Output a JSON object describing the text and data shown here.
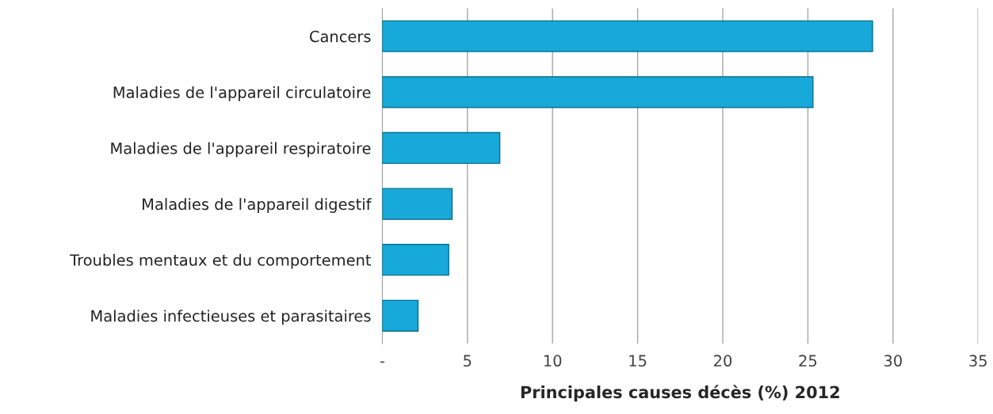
{
  "chart_data": {
    "type": "bar",
    "orientation": "horizontal",
    "xlabel": "Principales causes décès (%) 2012",
    "categories": [
      "Cancers",
      "Maladies de l'appareil circulatoire",
      "Maladies de l'appareil respiratoire",
      "Maladies de l'appareil digestif",
      "Troubles mentaux et du comportement",
      "Maladies infectieuses et parasitaires"
    ],
    "values": [
      28.8,
      25.3,
      6.9,
      4.1,
      3.9,
      2.1
    ],
    "color": "#16a9d9",
    "xlim": [
      0,
      35
    ],
    "xticks": [
      {
        "value": 0,
        "label": "-"
      },
      5,
      10,
      15,
      20,
      25,
      30,
      35
    ],
    "grid": "x",
    "legend": false
  }
}
